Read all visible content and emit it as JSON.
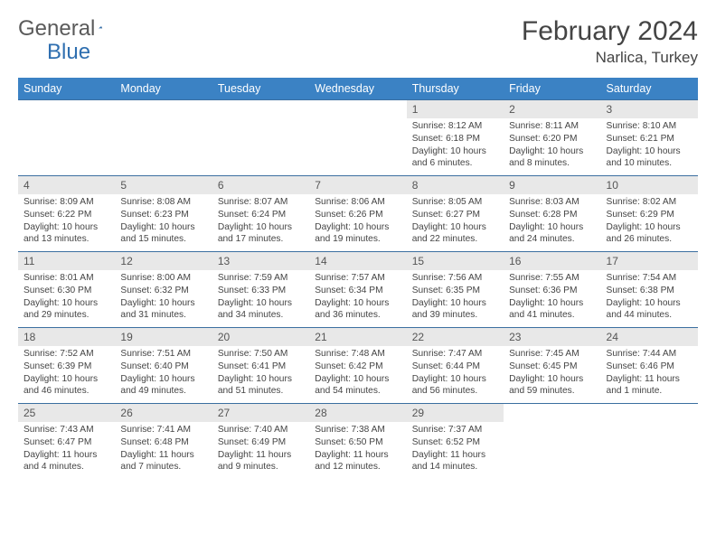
{
  "brand": {
    "name_part1": "General",
    "name_part2": "Blue"
  },
  "title": "February 2024",
  "location": "Narlica, Turkey",
  "colors": {
    "header_bg": "#3b82c4",
    "header_text": "#ffffff",
    "border": "#3b6fa0",
    "daynum_bg": "#e8e8e8",
    "text": "#444444",
    "logo_gray": "#5a5a5a",
    "logo_blue": "#2f6fb0"
  },
  "weekdays": [
    "Sunday",
    "Monday",
    "Tuesday",
    "Wednesday",
    "Thursday",
    "Friday",
    "Saturday"
  ],
  "weeks": [
    [
      null,
      null,
      null,
      null,
      {
        "n": "1",
        "sr": "Sunrise: 8:12 AM",
        "ss": "Sunset: 6:18 PM",
        "dl": "Daylight: 10 hours and 6 minutes."
      },
      {
        "n": "2",
        "sr": "Sunrise: 8:11 AM",
        "ss": "Sunset: 6:20 PM",
        "dl": "Daylight: 10 hours and 8 minutes."
      },
      {
        "n": "3",
        "sr": "Sunrise: 8:10 AM",
        "ss": "Sunset: 6:21 PM",
        "dl": "Daylight: 10 hours and 10 minutes."
      }
    ],
    [
      {
        "n": "4",
        "sr": "Sunrise: 8:09 AM",
        "ss": "Sunset: 6:22 PM",
        "dl": "Daylight: 10 hours and 13 minutes."
      },
      {
        "n": "5",
        "sr": "Sunrise: 8:08 AM",
        "ss": "Sunset: 6:23 PM",
        "dl": "Daylight: 10 hours and 15 minutes."
      },
      {
        "n": "6",
        "sr": "Sunrise: 8:07 AM",
        "ss": "Sunset: 6:24 PM",
        "dl": "Daylight: 10 hours and 17 minutes."
      },
      {
        "n": "7",
        "sr": "Sunrise: 8:06 AM",
        "ss": "Sunset: 6:26 PM",
        "dl": "Daylight: 10 hours and 19 minutes."
      },
      {
        "n": "8",
        "sr": "Sunrise: 8:05 AM",
        "ss": "Sunset: 6:27 PM",
        "dl": "Daylight: 10 hours and 22 minutes."
      },
      {
        "n": "9",
        "sr": "Sunrise: 8:03 AM",
        "ss": "Sunset: 6:28 PM",
        "dl": "Daylight: 10 hours and 24 minutes."
      },
      {
        "n": "10",
        "sr": "Sunrise: 8:02 AM",
        "ss": "Sunset: 6:29 PM",
        "dl": "Daylight: 10 hours and 26 minutes."
      }
    ],
    [
      {
        "n": "11",
        "sr": "Sunrise: 8:01 AM",
        "ss": "Sunset: 6:30 PM",
        "dl": "Daylight: 10 hours and 29 minutes."
      },
      {
        "n": "12",
        "sr": "Sunrise: 8:00 AM",
        "ss": "Sunset: 6:32 PM",
        "dl": "Daylight: 10 hours and 31 minutes."
      },
      {
        "n": "13",
        "sr": "Sunrise: 7:59 AM",
        "ss": "Sunset: 6:33 PM",
        "dl": "Daylight: 10 hours and 34 minutes."
      },
      {
        "n": "14",
        "sr": "Sunrise: 7:57 AM",
        "ss": "Sunset: 6:34 PM",
        "dl": "Daylight: 10 hours and 36 minutes."
      },
      {
        "n": "15",
        "sr": "Sunrise: 7:56 AM",
        "ss": "Sunset: 6:35 PM",
        "dl": "Daylight: 10 hours and 39 minutes."
      },
      {
        "n": "16",
        "sr": "Sunrise: 7:55 AM",
        "ss": "Sunset: 6:36 PM",
        "dl": "Daylight: 10 hours and 41 minutes."
      },
      {
        "n": "17",
        "sr": "Sunrise: 7:54 AM",
        "ss": "Sunset: 6:38 PM",
        "dl": "Daylight: 10 hours and 44 minutes."
      }
    ],
    [
      {
        "n": "18",
        "sr": "Sunrise: 7:52 AM",
        "ss": "Sunset: 6:39 PM",
        "dl": "Daylight: 10 hours and 46 minutes."
      },
      {
        "n": "19",
        "sr": "Sunrise: 7:51 AM",
        "ss": "Sunset: 6:40 PM",
        "dl": "Daylight: 10 hours and 49 minutes."
      },
      {
        "n": "20",
        "sr": "Sunrise: 7:50 AM",
        "ss": "Sunset: 6:41 PM",
        "dl": "Daylight: 10 hours and 51 minutes."
      },
      {
        "n": "21",
        "sr": "Sunrise: 7:48 AM",
        "ss": "Sunset: 6:42 PM",
        "dl": "Daylight: 10 hours and 54 minutes."
      },
      {
        "n": "22",
        "sr": "Sunrise: 7:47 AM",
        "ss": "Sunset: 6:44 PM",
        "dl": "Daylight: 10 hours and 56 minutes."
      },
      {
        "n": "23",
        "sr": "Sunrise: 7:45 AM",
        "ss": "Sunset: 6:45 PM",
        "dl": "Daylight: 10 hours and 59 minutes."
      },
      {
        "n": "24",
        "sr": "Sunrise: 7:44 AM",
        "ss": "Sunset: 6:46 PM",
        "dl": "Daylight: 11 hours and 1 minute."
      }
    ],
    [
      {
        "n": "25",
        "sr": "Sunrise: 7:43 AM",
        "ss": "Sunset: 6:47 PM",
        "dl": "Daylight: 11 hours and 4 minutes."
      },
      {
        "n": "26",
        "sr": "Sunrise: 7:41 AM",
        "ss": "Sunset: 6:48 PM",
        "dl": "Daylight: 11 hours and 7 minutes."
      },
      {
        "n": "27",
        "sr": "Sunrise: 7:40 AM",
        "ss": "Sunset: 6:49 PM",
        "dl": "Daylight: 11 hours and 9 minutes."
      },
      {
        "n": "28",
        "sr": "Sunrise: 7:38 AM",
        "ss": "Sunset: 6:50 PM",
        "dl": "Daylight: 11 hours and 12 minutes."
      },
      {
        "n": "29",
        "sr": "Sunrise: 7:37 AM",
        "ss": "Sunset: 6:52 PM",
        "dl": "Daylight: 11 hours and 14 minutes."
      },
      null,
      null
    ]
  ]
}
